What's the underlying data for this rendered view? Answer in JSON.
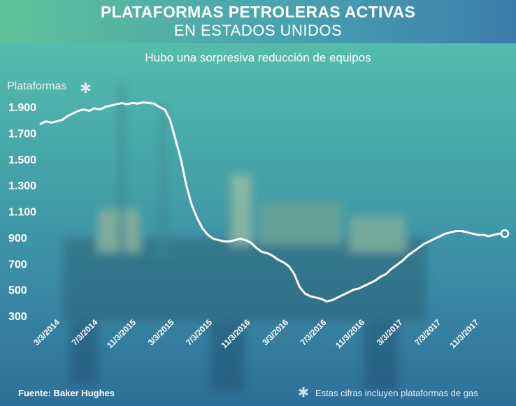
{
  "header": {
    "title": "PLATAFORMAS PETROLERAS ACTIVAS",
    "subtitle": "EN ESTADOS UNIDOS"
  },
  "caption": "Hubo una sorpresiva reducción de equipos",
  "footer": {
    "source": "Fuente: Baker Hughes",
    "note": "Estas cifras incluyen plataformas de gas",
    "note_icon": "asterisk-icon"
  },
  "colors": {
    "line": "#ffffff",
    "header_left": "#5fc19a",
    "header_right": "#3a7eac"
  },
  "chart_data": {
    "type": "line",
    "ylabel": "Plataformas",
    "ylabel_icon": "asterisk-icon",
    "ylim": [
      300,
      1950
    ],
    "yticks": [
      {
        "value": 1900,
        "label": "1.900"
      },
      {
        "value": 1700,
        "label": "1.700"
      },
      {
        "value": 1500,
        "label": "1.500"
      },
      {
        "value": 1300,
        "label": "1.300"
      },
      {
        "value": 1100,
        "label": "1.100"
      },
      {
        "value": 900,
        "label": "900"
      },
      {
        "value": 700,
        "label": "700"
      },
      {
        "value": 500,
        "label": "500"
      },
      {
        "value": 300,
        "label": "300"
      }
    ],
    "xticks": [
      "3/3/2014",
      "7/3/2014",
      "11/3/2015",
      "3/3/2015",
      "7/3/2015",
      "11/3/2016",
      "3/3/2016",
      "7/3/2016",
      "11/3/2016",
      "3/3/2017",
      "7/3/2017",
      "11/3/2017"
    ],
    "grid": false,
    "series": [
      {
        "values": [
          1770,
          1790,
          1780,
          1790,
          1800,
          1830,
          1850,
          1870,
          1880,
          1870,
          1890,
          1880,
          1900,
          1910,
          1920,
          1930,
          1920,
          1930,
          1925,
          1935,
          1930,
          1925,
          1900,
          1880,
          1800,
          1650,
          1500,
          1300,
          1150,
          1050,
          970,
          920,
          890,
          880,
          870,
          870,
          880,
          890,
          880,
          860,
          820,
          790,
          780,
          760,
          730,
          710,
          680,
          620,
          520,
          470,
          450,
          440,
          430,
          410,
          420,
          440,
          460,
          480,
          500,
          510,
          530,
          550,
          570,
          600,
          620,
          660,
          690,
          720,
          760,
          790,
          820,
          850,
          870,
          890,
          910,
          930,
          940,
          950,
          950,
          940,
          930,
          920,
          920,
          910,
          920,
          930,
          930
        ]
      }
    ]
  }
}
